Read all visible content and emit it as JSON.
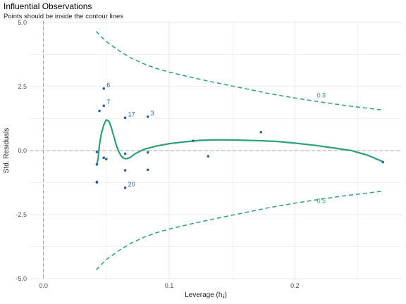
{
  "chart_data": {
    "type": "scatter",
    "title": "Influential Observations",
    "subtitle": "Points should be inside the contour lines",
    "xlabel": "Leverage (h",
    "xlabel_sub": "ii",
    "xlabel_close": ")",
    "ylabel": "Std. Residuals",
    "xlim": [
      -0.011,
      0.285
    ],
    "ylim": [
      -5.05,
      5.05
    ],
    "x_ticks": [
      0.0,
      0.1,
      0.2
    ],
    "x_tick_labels": [
      "0.0",
      "0.1",
      "0.2"
    ],
    "y_ticks": [
      5.0,
      2.5,
      0.0,
      -2.5,
      -5.0
    ],
    "y_tick_labels": [
      "5.0",
      "2.5",
      "0.0",
      "-2.5",
      "-5.0"
    ],
    "grid": true,
    "colors": {
      "points": "#2e5f9e",
      "contour": "#2ca174",
      "reference": "#a6a6a6",
      "grid": "#e6e6e6"
    },
    "points": [
      {
        "x": 0.0425,
        "y": -0.05
      },
      {
        "x": 0.0425,
        "y": -0.54
      },
      {
        "x": 0.0425,
        "y": -1.22
      },
      {
        "x": 0.0425,
        "y": -1.24
      },
      {
        "x": 0.0445,
        "y": 1.55
      },
      {
        "x": 0.048,
        "y": 2.42,
        "label": "6"
      },
      {
        "x": 0.048,
        "y": 1.75,
        "label": "7"
      },
      {
        "x": 0.048,
        "y": -0.28
      },
      {
        "x": 0.05,
        "y": -0.33
      },
      {
        "x": 0.065,
        "y": 1.28,
        "label": "17"
      },
      {
        "x": 0.065,
        "y": -0.12
      },
      {
        "x": 0.065,
        "y": -0.77
      },
      {
        "x": 0.065,
        "y": -1.45,
        "label": "20"
      },
      {
        "x": 0.083,
        "y": 1.32,
        "label": "3"
      },
      {
        "x": 0.083,
        "y": -0.07
      },
      {
        "x": 0.083,
        "y": -0.75
      },
      {
        "x": 0.119,
        "y": 0.38
      },
      {
        "x": 0.131,
        "y": -0.22
      },
      {
        "x": 0.173,
        "y": 0.72
      },
      {
        "x": 0.27,
        "y": -0.45
      }
    ],
    "loess": [
      [
        0.0425,
        -0.55
      ],
      [
        0.0435,
        -0.3
      ],
      [
        0.0445,
        0.2
      ],
      [
        0.046,
        0.65
      ],
      [
        0.048,
        1.0
      ],
      [
        0.05,
        1.2
      ],
      [
        0.052,
        1.15
      ],
      [
        0.054,
        0.9
      ],
      [
        0.056,
        0.55
      ],
      [
        0.058,
        0.2
      ],
      [
        0.06,
        -0.05
      ],
      [
        0.062,
        -0.22
      ],
      [
        0.064,
        -0.3
      ],
      [
        0.066,
        -0.32
      ],
      [
        0.069,
        -0.27
      ],
      [
        0.073,
        -0.12
      ],
      [
        0.08,
        0.05
      ],
      [
        0.09,
        0.18
      ],
      [
        0.1,
        0.27
      ],
      [
        0.112,
        0.34
      ],
      [
        0.125,
        0.4
      ],
      [
        0.14,
        0.42
      ],
      [
        0.155,
        0.41
      ],
      [
        0.17,
        0.39
      ],
      [
        0.185,
        0.36
      ],
      [
        0.2,
        0.29
      ],
      [
        0.215,
        0.21
      ],
      [
        0.23,
        0.11
      ],
      [
        0.245,
        0.0
      ],
      [
        0.258,
        -0.18
      ],
      [
        0.27,
        -0.43
      ]
    ],
    "contour_upper": [
      [
        0.042,
        4.65
      ],
      [
        0.05,
        4.25
      ],
      [
        0.06,
        3.9
      ],
      [
        0.07,
        3.6
      ],
      [
        0.08,
        3.38
      ],
      [
        0.09,
        3.2
      ],
      [
        0.1,
        3.06
      ],
      [
        0.12,
        2.83
      ],
      [
        0.14,
        2.62
      ],
      [
        0.16,
        2.42
      ],
      [
        0.18,
        2.22
      ],
      [
        0.2,
        2.05
      ],
      [
        0.22,
        1.9
      ],
      [
        0.24,
        1.76
      ],
      [
        0.27,
        1.58
      ]
    ],
    "contour_lower": [
      [
        0.042,
        -4.65
      ],
      [
        0.05,
        -4.25
      ],
      [
        0.06,
        -3.9
      ],
      [
        0.07,
        -3.6
      ],
      [
        0.08,
        -3.38
      ],
      [
        0.09,
        -3.2
      ],
      [
        0.1,
        -3.06
      ],
      [
        0.12,
        -2.83
      ],
      [
        0.14,
        -2.62
      ],
      [
        0.16,
        -2.42
      ],
      [
        0.18,
        -2.22
      ],
      [
        0.2,
        -2.05
      ],
      [
        0.22,
        -1.9
      ],
      [
        0.24,
        -1.76
      ],
      [
        0.27,
        -1.58
      ]
    ],
    "contour_labels": [
      {
        "text": "0.5",
        "x": 0.221,
        "y": 2.07
      },
      {
        "text": "0.5",
        "x": 0.221,
        "y": -2.05
      }
    ]
  }
}
